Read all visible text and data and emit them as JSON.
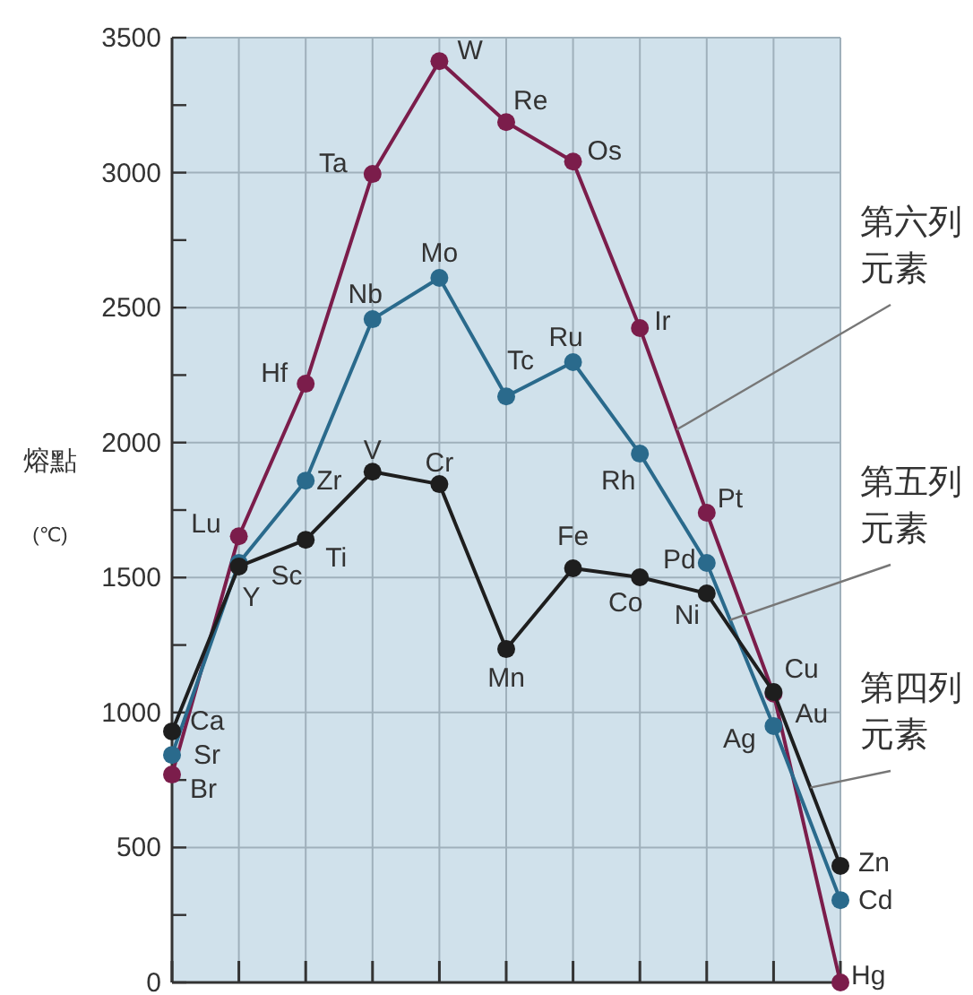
{
  "chart_data": {
    "type": "line",
    "ylabel": "熔點 (℃)",
    "categories": [
      null,
      null,
      null,
      null,
      null,
      null,
      null,
      null,
      null,
      null,
      null
    ],
    "series": [
      {
        "name": "第六列元素",
        "color": "#7b1d4b",
        "values": [
          770,
          1653,
          2218,
          2995,
          3413,
          3187,
          3041,
          2424,
          1740,
          1070,
          0
        ],
        "value_labels": [
          "Br",
          "Lu",
          "Hf",
          "Ta",
          "W",
          "Re",
          "Os",
          "Ir",
          "Pt",
          "Au",
          "Hg"
        ]
      },
      {
        "name": "第五列元素",
        "color": "#2a6a8c",
        "values": [
          843,
          1554,
          1859,
          2457,
          2610,
          2171,
          2298,
          1959,
          1554,
          950,
          305
        ],
        "value_labels": [
          "Sr",
          "Y",
          "Zr",
          "Nb",
          "Mo",
          "Tc",
          "Ru",
          "Rh",
          "Pd",
          "Ag",
          "Cd"
        ]
      },
      {
        "name": "第四列元素",
        "color": "#1e1e1e",
        "values": [
          930,
          1541,
          1640,
          1892,
          1846,
          1235,
          1534,
          1501,
          1441,
          1076,
          432
        ],
        "value_labels": [
          "Ca",
          "Sc",
          "Ti",
          "V",
          "Cr",
          "Mn",
          "Fe",
          "Co",
          "Ni",
          "Cu",
          "Zn"
        ]
      }
    ],
    "ylim": [
      0,
      3500
    ],
    "yticks": [
      0,
      {
        "value": 250,
        "label": null
      },
      500,
      {
        "value": 750,
        "label": null
      },
      1000,
      {
        "value": 1250,
        "label": null
      },
      1500,
      {
        "value": 1750,
        "label": null
      },
      2000,
      {
        "value": 2250,
        "label": null
      },
      2500,
      {
        "value": 2750,
        "label": null
      },
      3000,
      {
        "value": 3250,
        "label": null
      },
      3500
    ],
    "grid": true,
    "legend": false,
    "marker": "circle",
    "line_style": "solid"
  }
}
